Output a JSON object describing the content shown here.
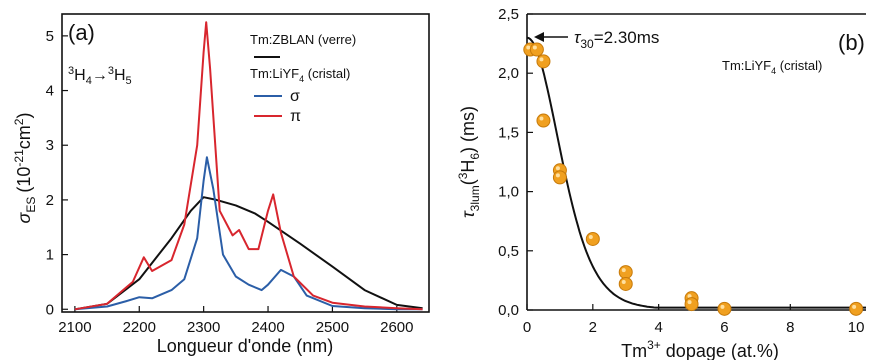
{
  "chart_data": [
    {
      "type": "line",
      "panel_label": "(a)",
      "transition": {
        "base": "H",
        "upper": "4",
        "upper_pre": "3",
        "lower": "5",
        "lower_pre": "3",
        "arrow": "→"
      },
      "xlabel": "Longueur d'onde (nm)",
      "ylabel": {
        "sym": "σ",
        "sub": "ES",
        "rest": "(10",
        "exp": "-21",
        "unit": "cm",
        "unit_exp": "2",
        "close": ")"
      },
      "xlim": [
        2080,
        2650
      ],
      "ylim": [
        -0.05,
        5.4
      ],
      "xticks": [
        "2100",
        "2200",
        "2300",
        "2400",
        "2500",
        "2600"
      ],
      "yticks": [
        "0",
        "1",
        "2",
        "3",
        "4",
        "5"
      ],
      "legend": {
        "glass": "Tm:ZBLAN (verre)",
        "crystal": "Tm:LiYF",
        "crystal_sub": "4",
        "crystal_tail": " (cristal)",
        "sigma": "σ",
        "pi": "π"
      },
      "colors": {
        "glass": "#111111",
        "sigma": "#2b5ea7",
        "pi": "#d8262e"
      },
      "series": [
        {
          "name": "Tm:ZBLAN (verre)",
          "color": "#111111",
          "x": [
            2100,
            2150,
            2200,
            2250,
            2280,
            2300,
            2320,
            2350,
            2380,
            2400,
            2450,
            2500,
            2550,
            2600,
            2640
          ],
          "y": [
            0.0,
            0.1,
            0.55,
            1.3,
            1.8,
            2.05,
            2.0,
            1.9,
            1.75,
            1.6,
            1.2,
            0.78,
            0.35,
            0.08,
            0.02
          ]
        },
        {
          "name": "σ",
          "color": "#2b5ea7",
          "x": [
            2100,
            2150,
            2180,
            2200,
            2220,
            2250,
            2270,
            2290,
            2300,
            2305,
            2315,
            2330,
            2350,
            2370,
            2390,
            2400,
            2420,
            2440,
            2460,
            2500,
            2550,
            2600,
            2640
          ],
          "y": [
            0.0,
            0.05,
            0.15,
            0.22,
            0.2,
            0.35,
            0.55,
            1.3,
            2.35,
            2.78,
            2.2,
            1.0,
            0.6,
            0.45,
            0.35,
            0.45,
            0.72,
            0.6,
            0.25,
            0.06,
            0.02,
            0.0,
            0.0
          ]
        },
        {
          "name": "π",
          "color": "#d8262e",
          "x": [
            2100,
            2150,
            2190,
            2207,
            2220,
            2250,
            2270,
            2290,
            2300,
            2304,
            2310,
            2325,
            2345,
            2355,
            2370,
            2385,
            2400,
            2408,
            2420,
            2440,
            2470,
            2500,
            2550,
            2600,
            2640
          ],
          "y": [
            0.0,
            0.1,
            0.5,
            0.95,
            0.7,
            0.9,
            1.55,
            3.0,
            4.7,
            5.25,
            4.4,
            1.8,
            1.35,
            1.45,
            1.1,
            1.1,
            1.8,
            2.1,
            1.4,
            0.6,
            0.25,
            0.12,
            0.05,
            0.02,
            0.0
          ]
        }
      ]
    },
    {
      "type": "scatter",
      "panel_label": "(b)",
      "annotation": {
        "sym": "τ",
        "sub": "30",
        "value": "=2.30ms"
      },
      "sample": {
        "text": "Tm:LiYF",
        "sub": "4",
        "tail": " (cristal)"
      },
      "xlabel": {
        "pre": "Tm",
        "sup": "3+",
        "post": " dopage (at.%)"
      },
      "ylabel": {
        "sym": "τ",
        "sub": "3lum",
        "mid": "(",
        "sup": "3",
        "mid2": "H",
        "sub2": "6",
        "close": ") (ms)"
      },
      "xlim": [
        0,
        10.3
      ],
      "ylim": [
        0,
        2.5
      ],
      "xticks": [
        "0",
        "2",
        "4",
        "6",
        "8",
        "10"
      ],
      "yticks": [
        "0,0",
        "0,5",
        "1,0",
        "1,5",
        "2,0",
        "2,5"
      ],
      "colors": {
        "points": "#f0a020",
        "fit": "#111111"
      },
      "points": {
        "x": [
          0.1,
          0.3,
          0.5,
          0.5,
          1.0,
          1.0,
          2.0,
          3.0,
          3.0,
          5.0,
          5.0,
          6.0,
          10.0
        ],
        "y": [
          2.2,
          2.2,
          2.1,
          1.6,
          1.18,
          1.12,
          0.6,
          0.32,
          0.22,
          0.1,
          0.05,
          0.01,
          0.01
        ]
      },
      "fit": {
        "tau0": 2.3,
        "k": 0.55
      }
    }
  ]
}
